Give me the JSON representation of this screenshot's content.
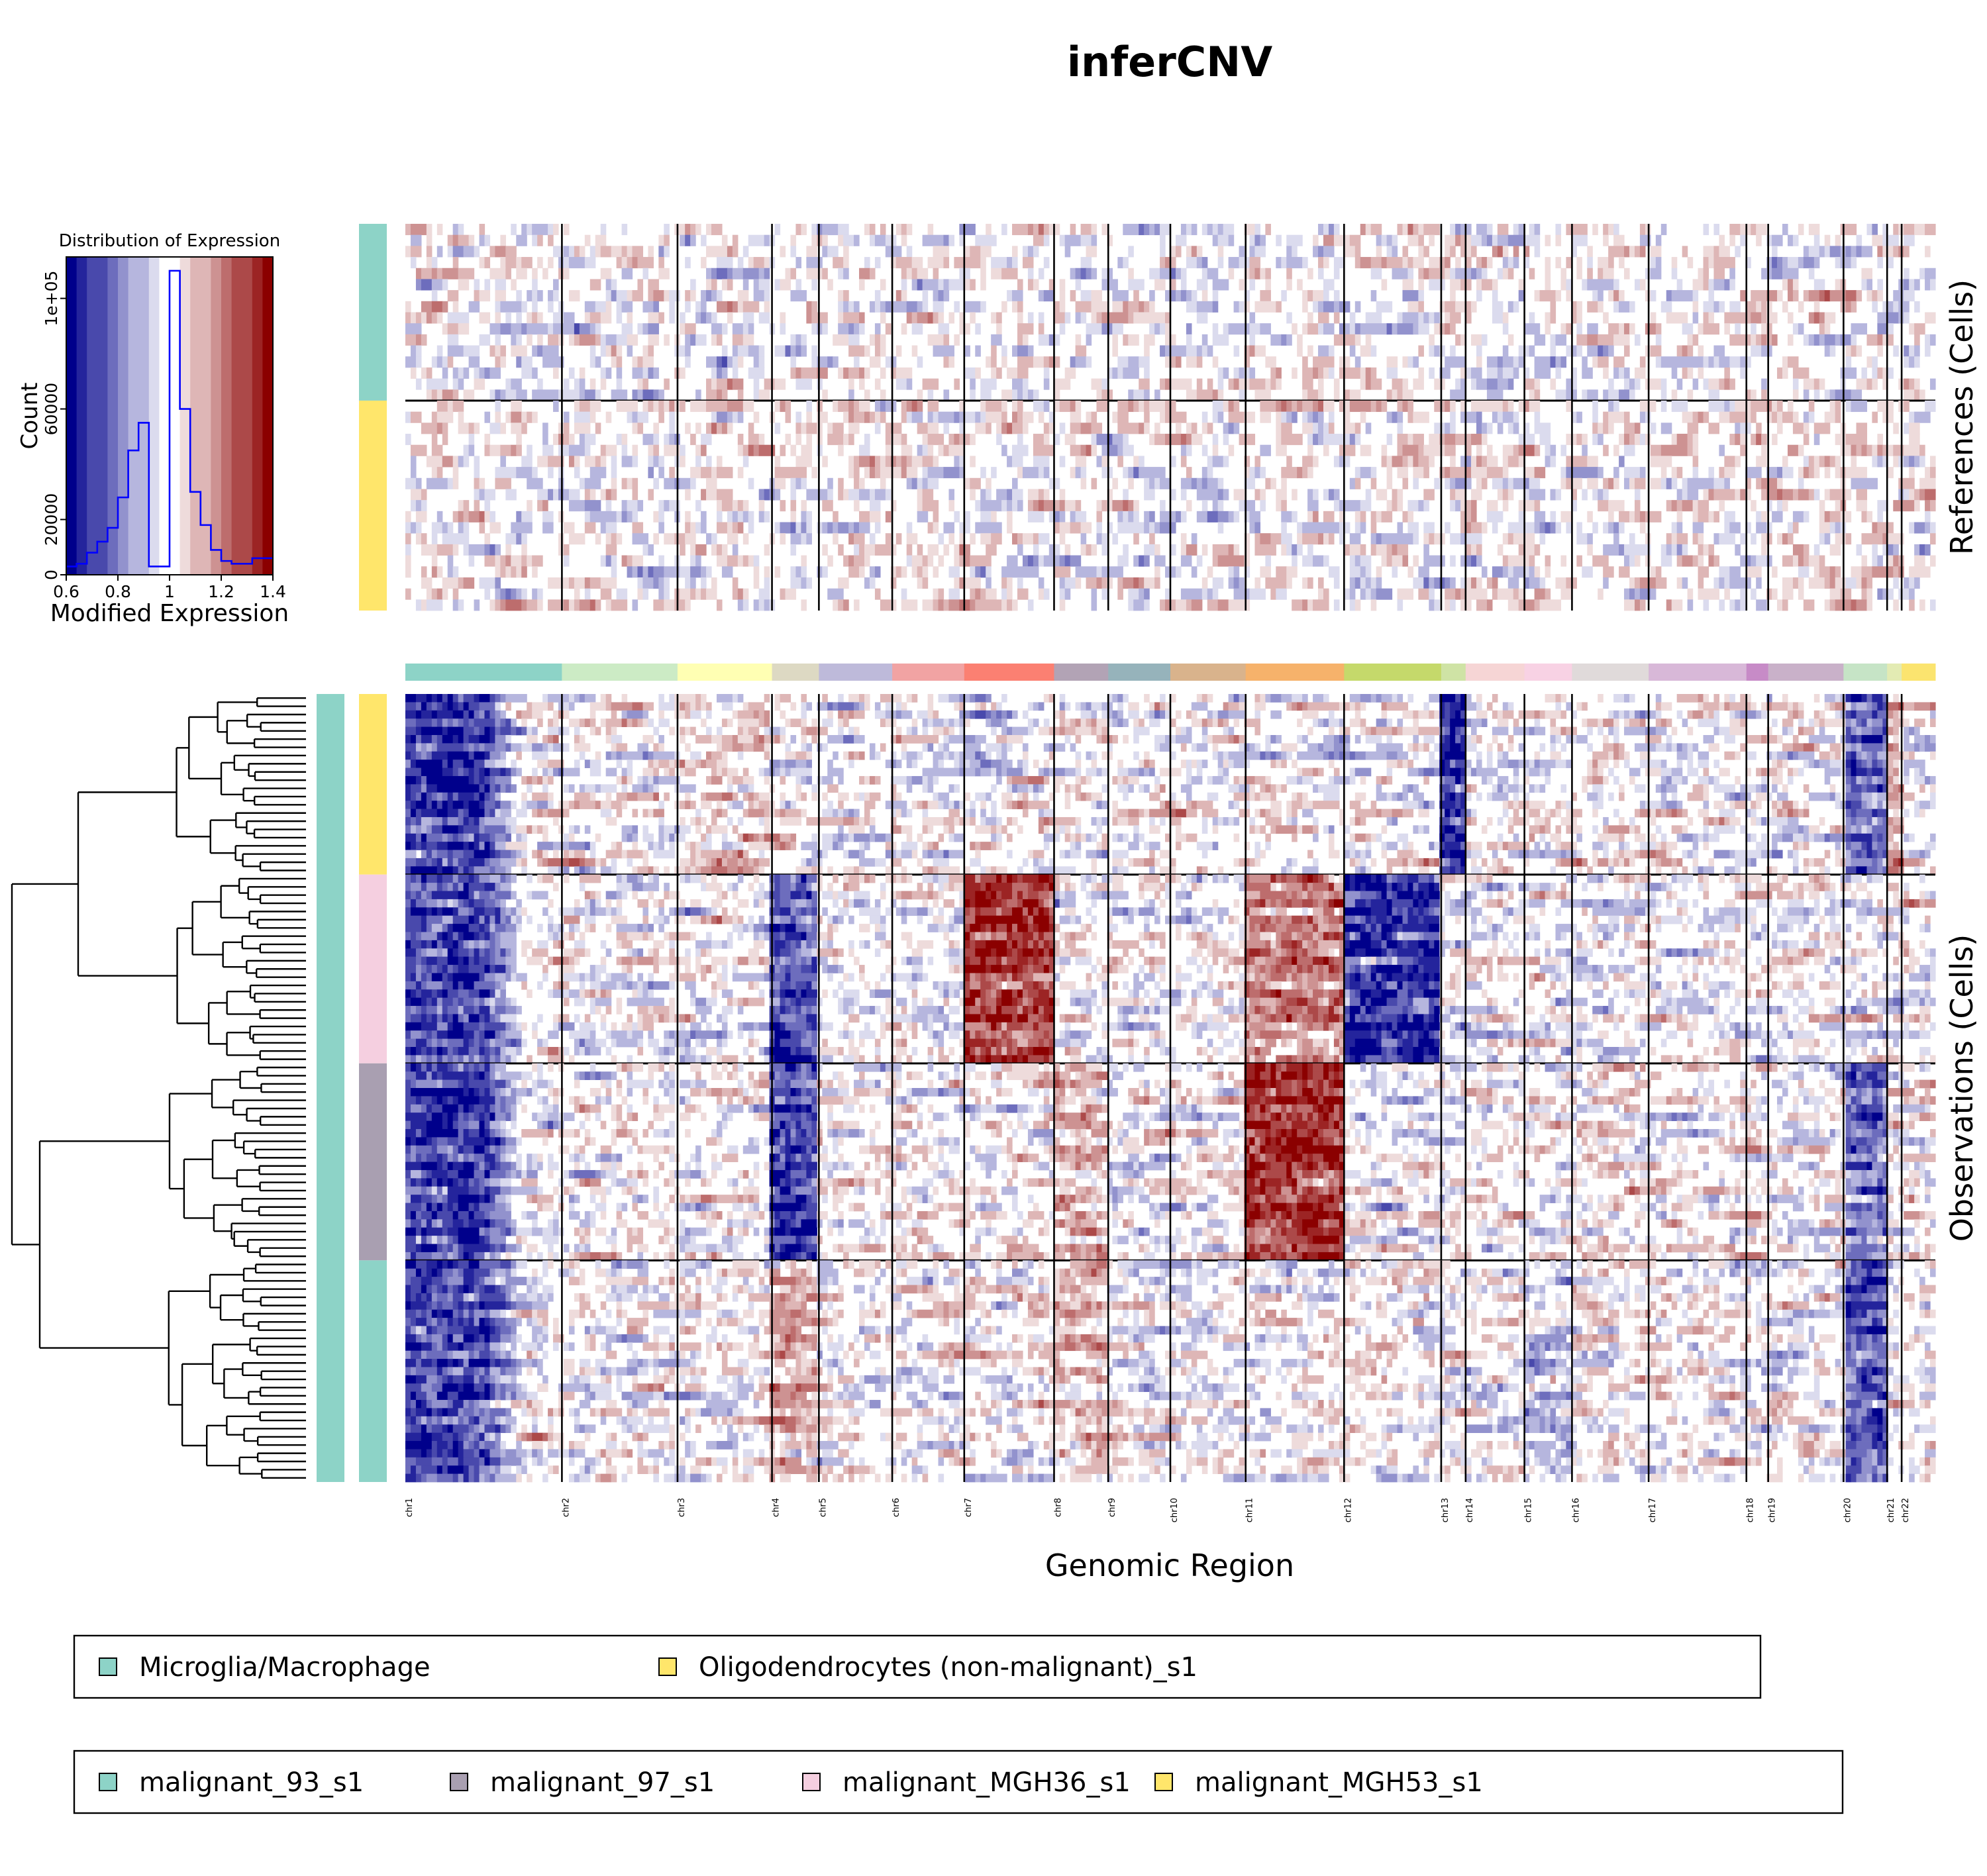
{
  "chart_data": {
    "type": "heatmap",
    "title": "inferCNV",
    "xlabel": "Genomic Region",
    "references_label": "References (Cells)",
    "observations_label": "Observations (Cells)",
    "value_range": [
      0.6,
      1.4
    ],
    "colormap": [
      "#00008b",
      "#ffffff",
      "#8b0000"
    ],
    "chromosomes": [
      {
        "name": "chr1",
        "span": 237,
        "color": "#8dd3c7"
      },
      {
        "name": "chr2",
        "span": 175,
        "color": "#ccebc5"
      },
      {
        "name": "chr3",
        "span": 143,
        "color": "#ffffb3"
      },
      {
        "name": "chr4",
        "span": 71,
        "color": "#ddd9c3"
      },
      {
        "name": "chr5",
        "span": 111,
        "color": "#bebada"
      },
      {
        "name": "chr6",
        "span": 109,
        "color": "#f1a3a3"
      },
      {
        "name": "chr7",
        "span": 136,
        "color": "#fb8072"
      },
      {
        "name": "chr8",
        "span": 82,
        "color": "#b2a3b5"
      },
      {
        "name": "chr9",
        "span": 94,
        "color": "#96b3bb"
      },
      {
        "name": "chr10",
        "span": 114,
        "color": "#d9b38c"
      },
      {
        "name": "chr11",
        "span": 149,
        "color": "#f6b26b"
      },
      {
        "name": "chr12",
        "span": 147,
        "color": "#c5d96b"
      },
      {
        "name": "chr13",
        "span": 37,
        "color": "#cfe3a5"
      },
      {
        "name": "chr14",
        "span": 89,
        "color": "#f6d5d5"
      },
      {
        "name": "chr15",
        "span": 72,
        "color": "#f8d2e4"
      },
      {
        "name": "chr16",
        "span": 116,
        "color": "#e0dada"
      },
      {
        "name": "chr17",
        "span": 148,
        "color": "#d8b8d8"
      },
      {
        "name": "chr18",
        "span": 33,
        "color": "#c78bc7"
      },
      {
        "name": "chr19",
        "span": 114,
        "color": "#c9b1c9"
      },
      {
        "name": "chr20",
        "span": 66,
        "color": "#c6e4c6"
      },
      {
        "name": "chr21",
        "span": 22,
        "color": "#e3ebb3"
      },
      {
        "name": "chr22",
        "span": 51,
        "color": "#fbe46f"
      }
    ],
    "reference_groups": [
      {
        "name": "Microglia/Macrophage",
        "rows": 16,
        "color": "#8dd3c7"
      },
      {
        "name": "Oligodendrocytes (non-malignant)_s1",
        "rows": 19,
        "color": "#ffe66b"
      }
    ],
    "observation_groups": [
      {
        "name": "malignant_MGH53_s1",
        "rows": 22,
        "color": "#ffe66b"
      },
      {
        "name": "malignant_MGH36_s1",
        "rows": 23,
        "color": "#f5cfe0"
      },
      {
        "name": "malignant_97_s1",
        "rows": 24,
        "color": "#a99fb1"
      },
      {
        "name": "malignant_93_s1",
        "rows": 27,
        "color": "#8dd3c7"
      }
    ],
    "histogram": {
      "title": "Distribution of Expression",
      "xlabel": "Modified Expression",
      "ylabel": "Count",
      "xlim": [
        0.6,
        1.4
      ],
      "ylim": [
        0,
        115000
      ],
      "x_ticks": [
        {
          "value": 0.6,
          "label": "0.6"
        },
        {
          "value": 0.8,
          "label": "0.8"
        },
        {
          "value": 1.0,
          "label": "1"
        },
        {
          "value": 1.2,
          "label": "1.2"
        },
        {
          "value": 1.4,
          "label": "1.4"
        }
      ],
      "y_ticks": [
        {
          "value": 0,
          "label": "0"
        },
        {
          "value": 20000,
          "label": "20000"
        },
        {
          "value": 60000,
          "label": "60000"
        },
        {
          "value": 100000,
          "label": "1e+05"
        }
      ],
      "bin_edges": [
        0.6,
        0.64,
        0.68,
        0.72,
        0.76,
        0.8,
        0.84,
        0.88,
        0.92,
        0.96,
        1.0,
        1.04,
        1.08,
        1.12,
        1.16,
        1.2,
        1.24,
        1.28,
        1.32,
        1.36,
        1.4
      ],
      "counts": [
        3000,
        4000,
        8000,
        12000,
        17000,
        28000,
        45000,
        55000,
        3000,
        3000,
        110000,
        60000,
        30000,
        18000,
        9000,
        5000,
        4000,
        4000,
        6000,
        6000
      ]
    }
  },
  "legends": [
    {
      "items": [
        {
          "label": "Microglia/Macrophage",
          "color": "#8dd3c7"
        },
        {
          "label": "Oligodendrocytes (non-malignant)_s1",
          "color": "#ffe66b"
        }
      ]
    },
    {
      "items": [
        {
          "label": "malignant_93_s1",
          "color": "#8dd3c7"
        },
        {
          "label": "malignant_97_s1",
          "color": "#a99fb1"
        },
        {
          "label": "malignant_MGH36_s1",
          "color": "#f5cfe0"
        },
        {
          "label": "malignant_MGH53_s1",
          "color": "#ffe66b"
        }
      ]
    }
  ]
}
